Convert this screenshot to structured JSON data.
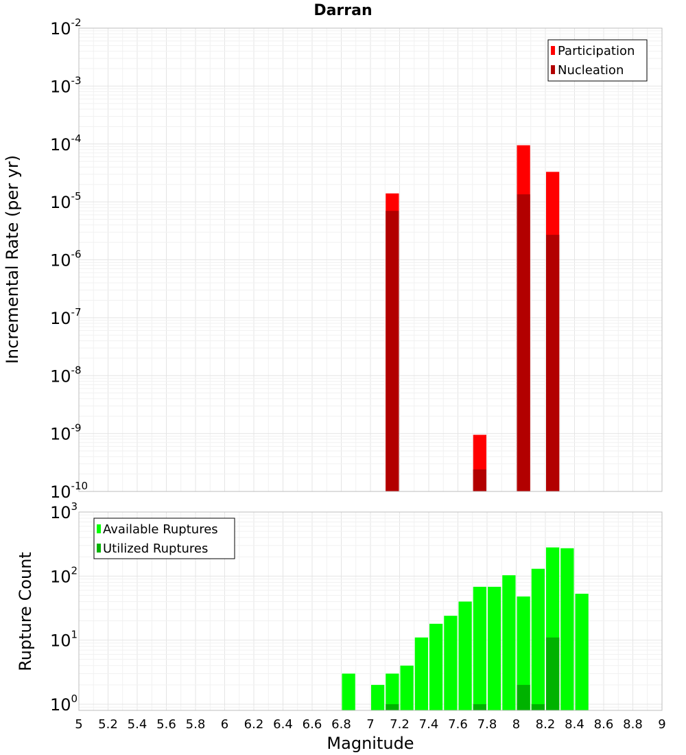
{
  "colors": {
    "participation": "#ff0000",
    "nucleation": "#b20000",
    "available": "#00ff00",
    "utilized": "#00b200"
  },
  "chart_data": [
    {
      "type": "bar",
      "title": "Darran",
      "xlabel": "",
      "ylabel": "Incremental Rate (per yr)",
      "yscale": "log",
      "xlim": [
        5,
        9
      ],
      "ylim": [
        1e-10,
        0.01
      ],
      "bar_width": 0.1,
      "legend_position": "top-right",
      "x_ticks": [
        "5",
        "5.2",
        "5.4",
        "5.6",
        "5.8",
        "6",
        "6.2",
        "6.4",
        "6.6",
        "6.8",
        "7",
        "7.2",
        "7.4",
        "7.6",
        "7.8",
        "8",
        "8.2",
        "8.4",
        "8.6",
        "8.8",
        "9"
      ],
      "y_tick_exponents": [
        "-10",
        "-9",
        "-8",
        "-7",
        "-6",
        "-5",
        "-4",
        "-3",
        "-2"
      ],
      "series": [
        {
          "name": "Participation",
          "x": [
            7.15,
            7.75,
            8.05,
            8.25
          ],
          "values": [
            1.4e-05,
            9.5e-10,
            9.5e-05,
            3.3e-05
          ]
        },
        {
          "name": "Nucleation",
          "x": [
            7.15,
            7.75,
            8.05,
            8.25
          ],
          "values": [
            7e-06,
            2.4e-10,
            1.35e-05,
            2.7e-06
          ]
        }
      ]
    },
    {
      "type": "bar",
      "title": "",
      "xlabel": "Magnitude",
      "ylabel": "Rupture Count",
      "yscale": "log",
      "xlim": [
        5,
        9
      ],
      "ylim": [
        0.8,
        1000
      ],
      "bar_width": 0.1,
      "legend_position": "top-left",
      "x_ticks": [
        "5",
        "5.2",
        "5.4",
        "5.6",
        "5.8",
        "6",
        "6.2",
        "6.4",
        "6.6",
        "6.8",
        "7",
        "7.2",
        "7.4",
        "7.6",
        "7.8",
        "8",
        "8.2",
        "8.4",
        "8.6",
        "8.8",
        "9"
      ],
      "y_tick_exponents": [
        "0",
        "1",
        "2",
        "3"
      ],
      "series": [
        {
          "name": "Available Ruptures",
          "x": [
            6.85,
            7.05,
            7.15,
            7.25,
            7.35,
            7.45,
            7.55,
            7.65,
            7.75,
            7.85,
            7.95,
            8.05,
            8.15,
            8.25,
            8.35,
            8.45
          ],
          "values": [
            3,
            2,
            3,
            4,
            11,
            18,
            24,
            40,
            68,
            68,
            103,
            48,
            130,
            280,
            272,
            53
          ]
        },
        {
          "name": "Utilized Ruptures",
          "x": [
            7.15,
            7.75,
            8.05,
            8.15,
            8.25
          ],
          "values": [
            1,
            1,
            2,
            1,
            11
          ]
        }
      ]
    }
  ]
}
